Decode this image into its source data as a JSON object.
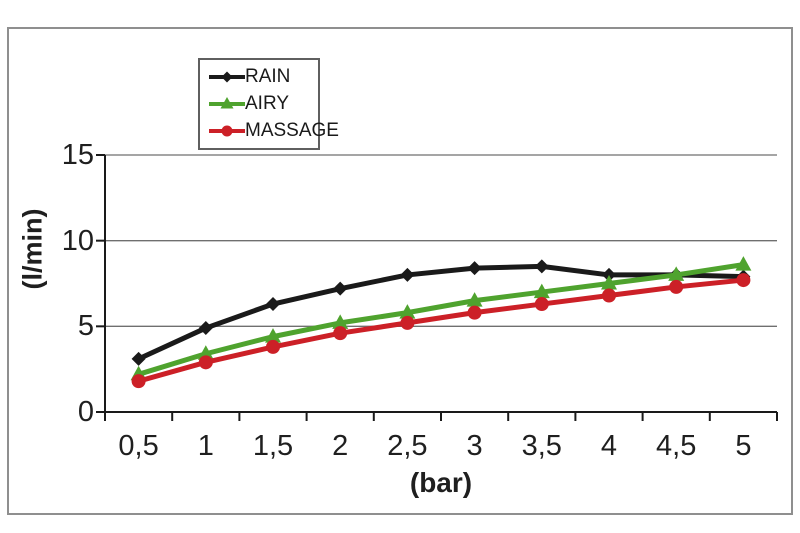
{
  "chart_data": {
    "type": "line",
    "title": "",
    "xlabel": "(bar)",
    "ylabel": "(l/min)",
    "categories": [
      "0,5",
      "1",
      "1,5",
      "2",
      "2,5",
      "3",
      "3,5",
      "4",
      "4,5",
      "5"
    ],
    "x_values": [
      0.5,
      1,
      1.5,
      2,
      2.5,
      3,
      3.5,
      4,
      4.5,
      5
    ],
    "y_ticks": [
      0,
      5,
      10,
      15
    ],
    "ylim": [
      0,
      15
    ],
    "grid": true,
    "grid_color": "#6f6f6f",
    "axis_color": "#1a1a1a",
    "legend_position": "top-inside-left",
    "series": [
      {
        "name": "RAIN",
        "color": "#1a1a1a",
        "marker": "diamond",
        "values": [
          3.1,
          4.9,
          6.3,
          7.2,
          8.0,
          8.4,
          8.5,
          8.0,
          8.0,
          7.9
        ]
      },
      {
        "name": "AIRY",
        "color": "#4fa32e",
        "marker": "triangle",
        "values": [
          2.2,
          3.4,
          4.4,
          5.2,
          5.8,
          6.5,
          7.0,
          7.5,
          8.0,
          8.6
        ]
      },
      {
        "name": "MASSAGE",
        "color": "#cc2027",
        "marker": "circle",
        "values": [
          1.8,
          2.9,
          3.8,
          4.6,
          5.2,
          5.8,
          6.3,
          6.8,
          7.3,
          7.7
        ]
      }
    ]
  }
}
